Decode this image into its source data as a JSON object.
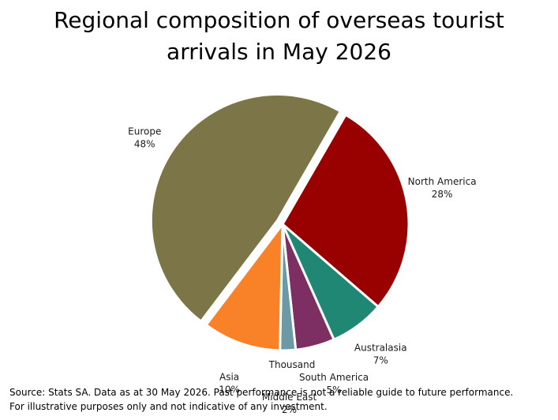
{
  "chart_data": {
    "type": "pie",
    "title_lines": [
      "Regional composition of overseas tourist",
      "arrivals in May 2026"
    ],
    "unit_label": "Thousand",
    "start_angle_deg": -60,
    "direction": "clockwise",
    "slices": [
      {
        "label": "North America",
        "value": 28,
        "value_label": "28%",
        "color": "#990000"
      },
      {
        "label": "Australasia",
        "value": 7,
        "value_label": "7%",
        "color": "#208774"
      },
      {
        "label": "South America",
        "value": 5,
        "value_label": "5%",
        "color": "#7d2f63"
      },
      {
        "label": "Middle East",
        "value": 2,
        "value_label": "2%",
        "color": "#6b99a6"
      },
      {
        "label": "Asia",
        "value": 10,
        "value_label": "10%",
        "color": "#f98127"
      },
      {
        "label": "Europe",
        "value": 48,
        "value_label": "48%",
        "color": "#7c7548",
        "exploded": true
      }
    ]
  },
  "footnote": {
    "line1": "Source: Stats SA. Data as at 30 May 2026. Past performance is not a reliable guide to future performance.",
    "line2": "For illustrative purposes only and not indicative of any investment."
  }
}
